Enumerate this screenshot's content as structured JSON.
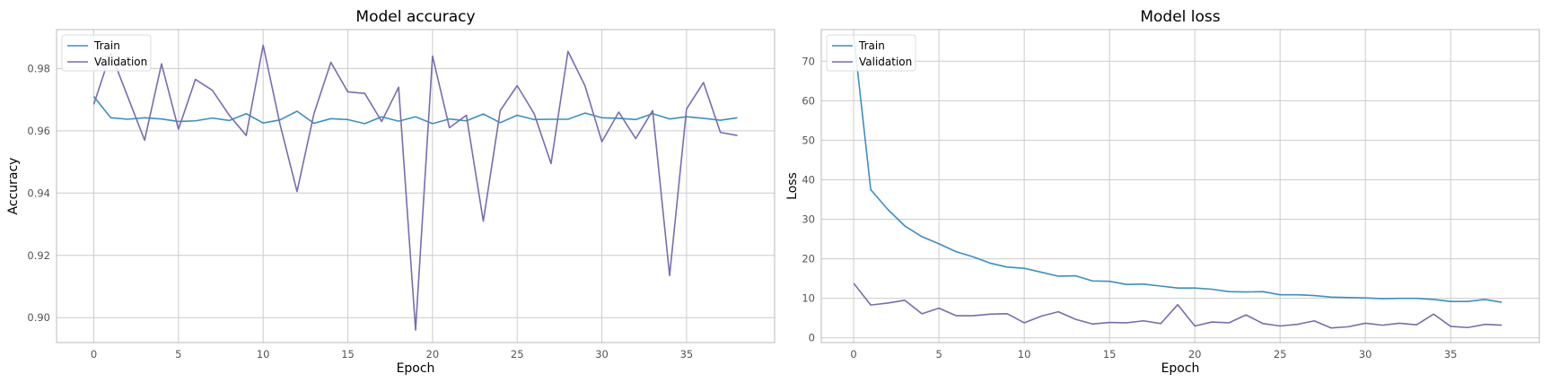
{
  "chart_data": [
    {
      "type": "line",
      "title": "Model accuracy",
      "xlabel": "Epoch",
      "ylabel": "Accuracy",
      "xlim": [
        -2.2,
        40.2
      ],
      "ylim": [
        0.892,
        0.9925
      ],
      "xticks": [
        0,
        5,
        10,
        15,
        20,
        25,
        30,
        35
      ],
      "yticks": [
        0.9,
        0.92,
        0.94,
        0.96,
        0.98
      ],
      "ytick_decimals": 2,
      "grid": true,
      "legend": "upper left",
      "x": [
        0,
        1,
        2,
        3,
        4,
        5,
        6,
        7,
        8,
        9,
        10,
        11,
        12,
        13,
        14,
        15,
        16,
        17,
        18,
        19,
        20,
        21,
        22,
        23,
        24,
        25,
        26,
        27,
        28,
        29,
        30,
        31,
        32,
        33,
        34,
        35,
        36,
        37,
        38
      ],
      "series": [
        {
          "name": "Train",
          "color": "#3a8fc4",
          "values": [
            0.971,
            0.9642,
            0.9637,
            0.9642,
            0.9638,
            0.963,
            0.9632,
            0.9641,
            0.9633,
            0.9655,
            0.9625,
            0.9635,
            0.9663,
            0.9624,
            0.9639,
            0.9636,
            0.9623,
            0.9645,
            0.9631,
            0.9645,
            0.9623,
            0.9638,
            0.9632,
            0.9654,
            0.9626,
            0.965,
            0.9636,
            0.9637,
            0.9637,
            0.9657,
            0.9642,
            0.964,
            0.9636,
            0.9655,
            0.9638,
            0.9645,
            0.964,
            0.9634,
            0.9642
          ]
        },
        {
          "name": "Validation",
          "color": "#7b6bb0",
          "values": [
            0.9685,
            0.985,
            0.971,
            0.957,
            0.9815,
            0.9605,
            0.9765,
            0.973,
            0.965,
            0.9585,
            0.9875,
            0.962,
            0.9405,
            0.9655,
            0.982,
            0.9725,
            0.972,
            0.963,
            0.974,
            0.896,
            0.984,
            0.961,
            0.965,
            0.931,
            0.9665,
            0.9745,
            0.9655,
            0.9495,
            0.9855,
            0.9745,
            0.9565,
            0.966,
            0.9575,
            0.9665,
            0.9135,
            0.967,
            0.9755,
            0.9595,
            0.9585
          ]
        }
      ]
    },
    {
      "type": "line",
      "title": "Model loss",
      "xlabel": "Epoch",
      "ylabel": "Loss",
      "xlim": [
        -1.9,
        40.2
      ],
      "ylim": [
        -1.2,
        78.0
      ],
      "xticks": [
        0,
        5,
        10,
        15,
        20,
        25,
        30,
        35
      ],
      "yticks": [
        0,
        10,
        20,
        30,
        40,
        50,
        60,
        70
      ],
      "ytick_decimals": 0,
      "grid": true,
      "legend": "upper left",
      "x": [
        0,
        1,
        2,
        3,
        4,
        5,
        6,
        7,
        8,
        9,
        10,
        11,
        12,
        13,
        14,
        15,
        16,
        17,
        18,
        19,
        20,
        21,
        22,
        23,
        24,
        25,
        26,
        27,
        28,
        29,
        30,
        31,
        32,
        33,
        34,
        35,
        36,
        37,
        38
      ],
      "series": [
        {
          "name": "Train",
          "color": "#3a8fc4",
          "values": [
            76.5,
            37.5,
            32.5,
            28.3,
            25.6,
            23.8,
            21.8,
            20.5,
            18.9,
            17.9,
            17.6,
            16.6,
            15.6,
            15.7,
            14.4,
            14.3,
            13.5,
            13.6,
            13.1,
            12.6,
            12.6,
            12.3,
            11.7,
            11.6,
            11.7,
            10.9,
            10.9,
            10.7,
            10.3,
            10.2,
            10.1,
            9.9,
            10.0,
            10.0,
            9.7,
            9.2,
            9.2,
            9.7,
            9.0
          ]
        },
        {
          "name": "Validation",
          "color": "#7b6bb0",
          "values": [
            13.8,
            8.3,
            8.8,
            9.5,
            6.1,
            7.5,
            5.6,
            5.6,
            6.0,
            6.1,
            3.8,
            5.5,
            6.6,
            4.7,
            3.5,
            3.9,
            3.8,
            4.3,
            3.6,
            8.4,
            3.0,
            4.0,
            3.8,
            5.8,
            3.6,
            3.0,
            3.4,
            4.3,
            2.5,
            2.8,
            3.7,
            3.2,
            3.7,
            3.3,
            6.0,
            2.9,
            2.6,
            3.4,
            3.2
          ]
        }
      ]
    }
  ]
}
